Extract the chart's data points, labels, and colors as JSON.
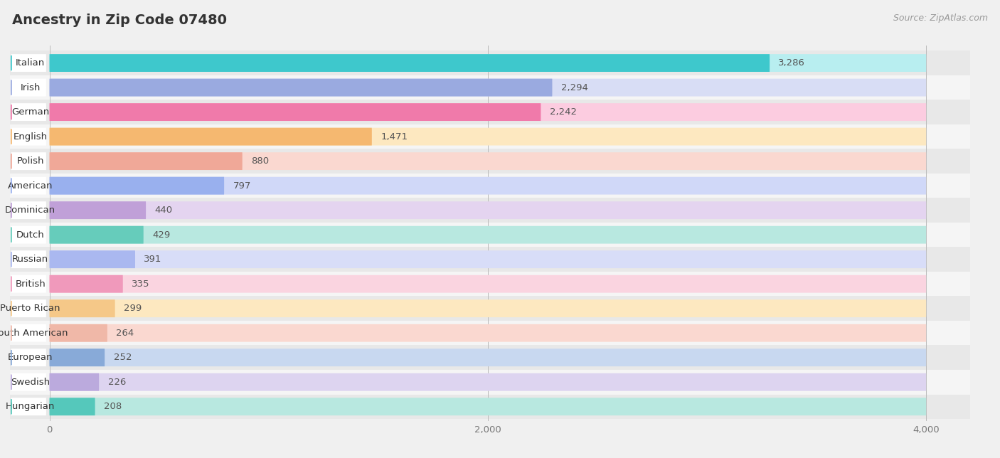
{
  "title": "Ancestry in Zip Code 07480",
  "source": "Source: ZipAtlas.com",
  "categories": [
    "Italian",
    "Irish",
    "German",
    "English",
    "Polish",
    "American",
    "Dominican",
    "Dutch",
    "Russian",
    "British",
    "Puerto Rican",
    "South American",
    "European",
    "Swedish",
    "Hungarian"
  ],
  "values": [
    3286,
    2294,
    2242,
    1471,
    880,
    797,
    440,
    429,
    391,
    335,
    299,
    264,
    252,
    226,
    208
  ],
  "colors": [
    "#3ec8cc",
    "#9aaae0",
    "#f07aaa",
    "#f5b870",
    "#f0a898",
    "#99b0ee",
    "#c0a0d8",
    "#66ccbb",
    "#aab8f0",
    "#f099bb",
    "#f5c888",
    "#f0b8a8",
    "#88aad8",
    "#bbaadd",
    "#55c8bb"
  ],
  "light_colors": [
    "#b8eef0",
    "#d8ddf5",
    "#fccce0",
    "#fde8c0",
    "#fad8d0",
    "#d0d8f8",
    "#e4d4f0",
    "#b8e8e0",
    "#d8ddf8",
    "#fad4e0",
    "#fde8c0",
    "#fad8d0",
    "#c8d8f0",
    "#ddd4f0",
    "#b8e8e0"
  ],
  "xlim_max": 4000,
  "xticks": [
    0,
    2000,
    4000
  ],
  "bg_color": "#f0f0f0",
  "row_colors": [
    "#e8e8e8",
    "#f5f5f5"
  ],
  "title_fontsize": 14,
  "source_fontsize": 9,
  "label_fontsize": 9.5,
  "value_fontsize": 9.5
}
